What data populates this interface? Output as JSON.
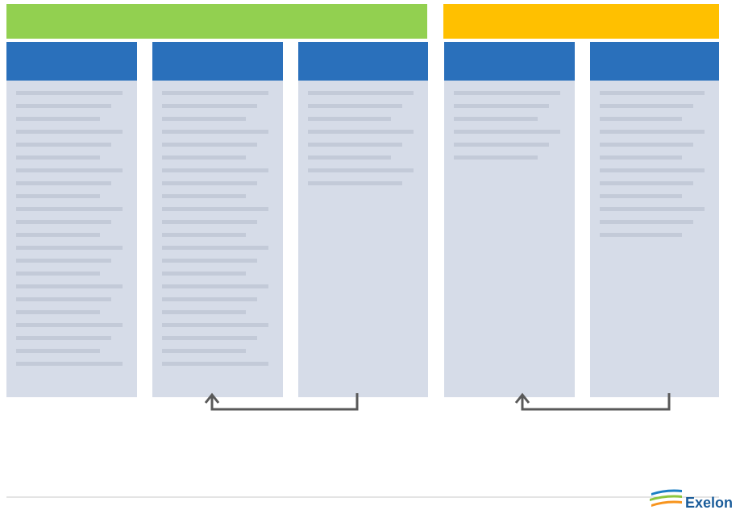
{
  "logo": {
    "text": "Exelon"
  }
}
